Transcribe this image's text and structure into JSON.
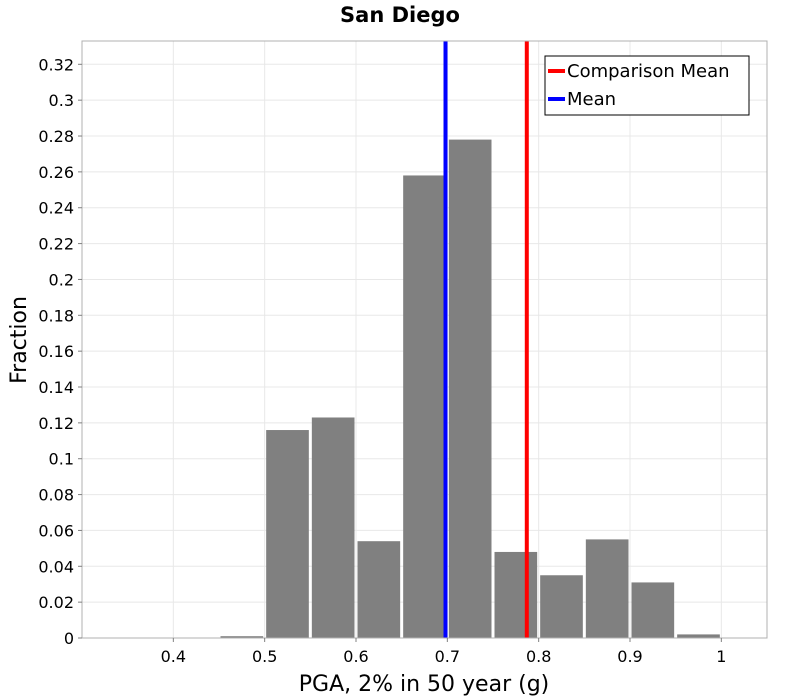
{
  "chart_data": {
    "type": "bar",
    "title": "San Diego",
    "xlabel": "PGA, 2% in 50 year (g)",
    "ylabel": "Fraction",
    "xlim": [
      0.3,
      1.05
    ],
    "ylim": [
      0,
      0.333
    ],
    "grid": true,
    "bin_width": 0.05,
    "bar_color": "#808080",
    "x_ticks": [
      {
        "value": 0.4,
        "label": "0.4"
      },
      {
        "value": 0.5,
        "label": "0.5"
      },
      {
        "value": 0.6,
        "label": "0.6"
      },
      {
        "value": 0.7,
        "label": "0.7"
      },
      {
        "value": 0.8,
        "label": "0.8"
      },
      {
        "value": 0.9,
        "label": "0.9"
      },
      {
        "value": 1.0,
        "label": "1"
      }
    ],
    "y_ticks": [
      {
        "value": 0,
        "label": "0"
      },
      {
        "value": 0.02,
        "label": "0.02"
      },
      {
        "value": 0.04,
        "label": "0.04"
      },
      {
        "value": 0.06,
        "label": "0.06"
      },
      {
        "value": 0.08,
        "label": "0.08"
      },
      {
        "value": 0.1,
        "label": "0.1"
      },
      {
        "value": 0.12,
        "label": "0.12"
      },
      {
        "value": 0.14,
        "label": "0.14"
      },
      {
        "value": 0.16,
        "label": "0.16"
      },
      {
        "value": 0.18,
        "label": "0.18"
      },
      {
        "value": 0.2,
        "label": "0.2"
      },
      {
        "value": 0.22,
        "label": "0.22"
      },
      {
        "value": 0.24,
        "label": "0.24"
      },
      {
        "value": 0.26,
        "label": "0.26"
      },
      {
        "value": 0.28,
        "label": "0.28"
      },
      {
        "value": 0.3,
        "label": "0.3"
      },
      {
        "value": 0.32,
        "label": "0.32"
      }
    ],
    "bins": [
      {
        "center": 0.325,
        "value": 0.0
      },
      {
        "center": 0.375,
        "value": 0.0
      },
      {
        "center": 0.425,
        "value": 0.0
      },
      {
        "center": 0.475,
        "value": 0.001
      },
      {
        "center": 0.525,
        "value": 0.116
      },
      {
        "center": 0.575,
        "value": 0.123
      },
      {
        "center": 0.625,
        "value": 0.054
      },
      {
        "center": 0.675,
        "value": 0.258
      },
      {
        "center": 0.725,
        "value": 0.278
      },
      {
        "center": 0.775,
        "value": 0.048
      },
      {
        "center": 0.825,
        "value": 0.035
      },
      {
        "center": 0.875,
        "value": 0.055
      },
      {
        "center": 0.925,
        "value": 0.031
      },
      {
        "center": 0.975,
        "value": 0.002
      }
    ],
    "vertical_lines": [
      {
        "name": "Comparison Mean",
        "x": 0.787,
        "color": "#ff0000"
      },
      {
        "name": "Mean",
        "x": 0.698,
        "color": "#0000ff"
      }
    ],
    "legend": {
      "position": "top-right",
      "entries": [
        {
          "label": "Comparison Mean",
          "color": "#ff0000"
        },
        {
          "label": "Mean",
          "color": "#0000ff"
        }
      ]
    }
  }
}
